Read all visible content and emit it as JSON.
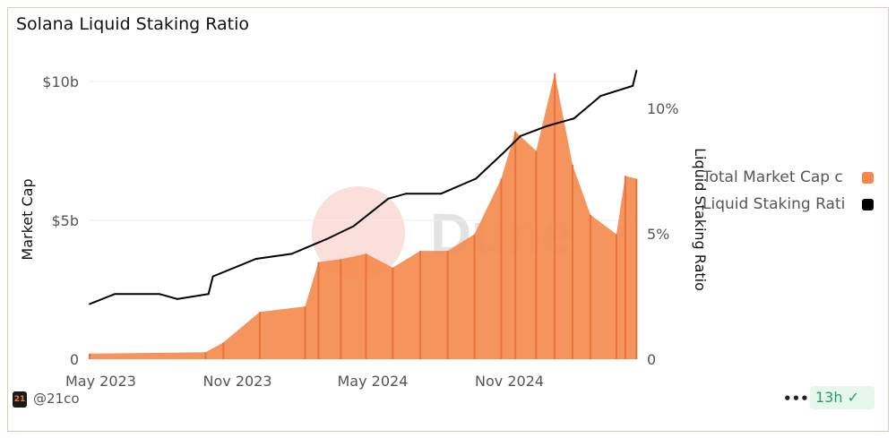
{
  "title": "Solana Liquid Staking Ratio",
  "footer": {
    "handle": "@21co",
    "logo_text": "21",
    "more": "•••",
    "freshness": "13h"
  },
  "watermark": "Dune",
  "colors": {
    "bars": "#f4884a",
    "line": "#000000",
    "badge": "#2a9d66"
  },
  "chart_data": {
    "type": "bar+line",
    "xlabel": "",
    "ylabel_left": "Market Cap",
    "ylabel_right": "Liquid Staking Ratio",
    "x_ticks": [
      "May 2023",
      "Nov 2023",
      "May 2024",
      "Nov 2024"
    ],
    "x_tick_dates": [
      "2023-05-01",
      "2023-11-01",
      "2024-05-01",
      "2024-11-01"
    ],
    "xlim": [
      "2023-04-16",
      "2025-04-23"
    ],
    "y_left_ticks": [
      "0",
      "$5b",
      "$10b"
    ],
    "y_left_values": [
      0,
      5,
      10
    ],
    "ylim_left": [
      0,
      10.3
    ],
    "y_right_ticks": [
      "0",
      "5%",
      "10%"
    ],
    "y_right_values": [
      0,
      5,
      10
    ],
    "grid": true,
    "legend_position": "right",
    "series": [
      {
        "name": "Total Market Cap c",
        "axis": "left",
        "type": "bar",
        "unit": "USD billions",
        "points": [
          [
            "2023-04-16",
            0.2
          ],
          [
            "2023-09-19",
            0.25
          ],
          [
            "2023-10-13",
            0.6
          ],
          [
            "2023-12-01",
            1.7
          ],
          [
            "2024-01-31",
            1.9
          ],
          [
            "2024-02-18",
            3.5
          ],
          [
            "2024-03-19",
            3.6
          ],
          [
            "2024-04-22",
            3.8
          ],
          [
            "2024-05-28",
            3.3
          ],
          [
            "2024-07-04",
            3.9
          ],
          [
            "2024-08-10",
            3.9
          ],
          [
            "2024-09-15",
            4.5
          ],
          [
            "2024-10-21",
            6.5
          ],
          [
            "2024-11-09",
            8.2
          ],
          [
            "2024-12-07",
            7.5
          ],
          [
            "2025-01-01",
            10.3
          ],
          [
            "2025-01-25",
            7.0
          ],
          [
            "2025-02-18",
            5.2
          ],
          [
            "2025-03-25",
            4.5
          ],
          [
            "2025-04-06",
            6.6
          ],
          [
            "2025-04-21",
            6.5
          ]
        ]
      },
      {
        "name": "Liquid Staking Rati",
        "axis": "right",
        "type": "line",
        "unit": "%",
        "points": [
          [
            "2023-04-16",
            2.2
          ],
          [
            "2023-05-20",
            2.6
          ],
          [
            "2023-07-19",
            2.6
          ],
          [
            "2023-08-12",
            2.4
          ],
          [
            "2023-09-23",
            2.6
          ],
          [
            "2023-09-29",
            3.3
          ],
          [
            "2023-11-26",
            4.0
          ],
          [
            "2024-01-13",
            4.2
          ],
          [
            "2024-03-01",
            4.8
          ],
          [
            "2024-04-05",
            5.3
          ],
          [
            "2024-05-22",
            6.4
          ],
          [
            "2024-06-15",
            6.6
          ],
          [
            "2024-08-01",
            6.6
          ],
          [
            "2024-09-17",
            7.2
          ],
          [
            "2024-10-23",
            8.2
          ],
          [
            "2024-11-16",
            8.9
          ],
          [
            "2024-12-22",
            9.3
          ],
          [
            "2025-01-27",
            9.6
          ],
          [
            "2025-03-04",
            10.5
          ],
          [
            "2025-04-16",
            10.9
          ],
          [
            "2025-04-21",
            11.5
          ]
        ]
      }
    ]
  }
}
